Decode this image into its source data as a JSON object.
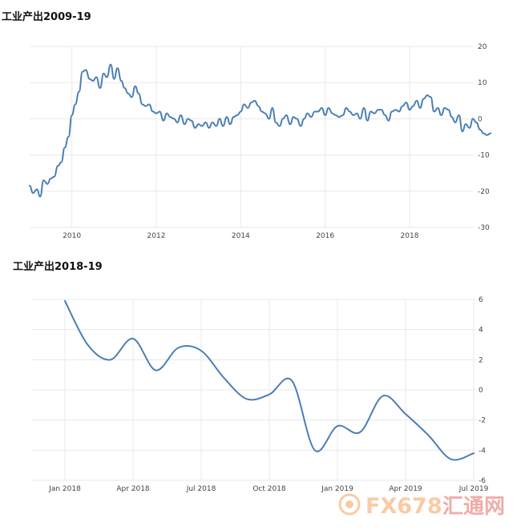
{
  "chart_data": [
    {
      "type": "line",
      "title": "工业产出2009-19",
      "x_ticks": [
        "2010",
        "2012",
        "2014",
        "2016",
        "2018"
      ],
      "y_ticks": [
        "20",
        "10",
        "0",
        "-10",
        "-20",
        "-30"
      ],
      "ylim": [
        -30,
        20
      ],
      "xlim": [
        2009.0,
        2019.5
      ],
      "grid": true,
      "series": [
        {
          "values": [
            [
              2009.0,
              -18.5
            ],
            [
              2009.08,
              -20.5
            ],
            [
              2009.17,
              -19.5
            ],
            [
              2009.25,
              -21.5
            ],
            [
              2009.33,
              -17
            ],
            [
              2009.42,
              -18
            ],
            [
              2009.5,
              -16.5
            ],
            [
              2009.58,
              -16
            ],
            [
              2009.67,
              -13
            ],
            [
              2009.75,
              -12
            ],
            [
              2009.83,
              -8
            ],
            [
              2009.92,
              -5
            ],
            [
              2010.0,
              1
            ],
            [
              2010.08,
              4
            ],
            [
              2010.17,
              7.5
            ],
            [
              2010.25,
              13
            ],
            [
              2010.33,
              13.5
            ],
            [
              2010.42,
              11
            ],
            [
              2010.5,
              10.5
            ],
            [
              2010.58,
              11.5
            ],
            [
              2010.67,
              8.5
            ],
            [
              2010.75,
              12.5
            ],
            [
              2010.83,
              11.5
            ],
            [
              2010.92,
              15
            ],
            [
              2011.0,
              11
            ],
            [
              2011.08,
              14
            ],
            [
              2011.17,
              10.5
            ],
            [
              2011.25,
              8.5
            ],
            [
              2011.33,
              7
            ],
            [
              2011.42,
              6
            ],
            [
              2011.5,
              9
            ],
            [
              2011.58,
              7
            ],
            [
              2011.67,
              4
            ],
            [
              2011.75,
              3.5
            ],
            [
              2011.83,
              4
            ],
            [
              2011.92,
              2
            ],
            [
              2012.0,
              1.5
            ],
            [
              2012.08,
              2
            ],
            [
              2012.17,
              -0.5
            ],
            [
              2012.25,
              1.5
            ],
            [
              2012.33,
              0.5
            ],
            [
              2012.42,
              0
            ],
            [
              2012.5,
              -1
            ],
            [
              2012.58,
              1
            ],
            [
              2012.67,
              -1.5
            ],
            [
              2012.75,
              0
            ],
            [
              2012.83,
              -0.5
            ],
            [
              2012.92,
              -2.5
            ],
            [
              2013.0,
              -1.5
            ],
            [
              2013.08,
              -2
            ],
            [
              2013.17,
              -1
            ],
            [
              2013.25,
              -2.5
            ],
            [
              2013.33,
              -1
            ],
            [
              2013.42,
              -2
            ],
            [
              2013.5,
              0
            ],
            [
              2013.58,
              -2
            ],
            [
              2013.67,
              0.5
            ],
            [
              2013.75,
              -1.5
            ],
            [
              2013.83,
              0.5
            ],
            [
              2013.92,
              1
            ],
            [
              2014.0,
              2
            ],
            [
              2014.08,
              4
            ],
            [
              2014.17,
              3
            ],
            [
              2014.25,
              4.5
            ],
            [
              2014.33,
              5
            ],
            [
              2014.42,
              3.5
            ],
            [
              2014.5,
              2
            ],
            [
              2014.58,
              1.5
            ],
            [
              2014.67,
              0
            ],
            [
              2014.75,
              3
            ],
            [
              2014.83,
              -1
            ],
            [
              2014.92,
              -2
            ],
            [
              2015.0,
              0
            ],
            [
              2015.08,
              1
            ],
            [
              2015.17,
              -1.5
            ],
            [
              2015.25,
              0.5
            ],
            [
              2015.33,
              0
            ],
            [
              2015.42,
              -2
            ],
            [
              2015.5,
              0
            ],
            [
              2015.58,
              1.5
            ],
            [
              2015.67,
              0.5
            ],
            [
              2015.75,
              2
            ],
            [
              2015.83,
              2
            ],
            [
              2015.92,
              3
            ],
            [
              2016.0,
              1
            ],
            [
              2016.08,
              3
            ],
            [
              2016.17,
              1.5
            ],
            [
              2016.25,
              1
            ],
            [
              2016.33,
              0.5
            ],
            [
              2016.42,
              1
            ],
            [
              2016.5,
              3
            ],
            [
              2016.58,
              2
            ],
            [
              2016.67,
              1
            ],
            [
              2016.75,
              1.5
            ],
            [
              2016.83,
              0
            ],
            [
              2016.92,
              3
            ],
            [
              2017.0,
              -0.5
            ],
            [
              2017.08,
              2
            ],
            [
              2017.17,
              1.5
            ],
            [
              2017.25,
              2.5
            ],
            [
              2017.33,
              2.5
            ],
            [
              2017.42,
              1
            ],
            [
              2017.5,
              -0.5
            ],
            [
              2017.58,
              2
            ],
            [
              2017.67,
              2.5
            ],
            [
              2017.75,
              2
            ],
            [
              2017.83,
              3.5
            ],
            [
              2017.92,
              4.5
            ],
            [
              2018.0,
              2.5
            ],
            [
              2018.08,
              3.5
            ],
            [
              2018.17,
              5
            ],
            [
              2018.25,
              3
            ],
            [
              2018.33,
              5.5
            ],
            [
              2018.42,
              6.5
            ],
            [
              2018.5,
              6
            ],
            [
              2018.58,
              2
            ],
            [
              2018.67,
              3
            ],
            [
              2018.75,
              1
            ],
            [
              2018.83,
              3
            ],
            [
              2018.92,
              2.5
            ],
            [
              2019.0,
              0.5
            ],
            [
              2019.08,
              -1
            ],
            [
              2019.17,
              1
            ],
            [
              2019.25,
              -3.5
            ],
            [
              2019.33,
              -1.5
            ],
            [
              2019.42,
              -2.5
            ],
            [
              2019.5,
              0
            ],
            [
              2019.58,
              -1
            ],
            [
              2019.67,
              -3
            ],
            [
              2019.75,
              -4
            ],
            [
              2019.83,
              -4.5
            ],
            [
              2019.92,
              -4
            ]
          ]
        }
      ]
    },
    {
      "type": "line",
      "title": "工业产出2018-19",
      "x_ticks": [
        "Jan 2018",
        "Apr 2018",
        "Jul 2018",
        "Oct 2018",
        "Jan 2019",
        "Apr 2019",
        "Jul 2019"
      ],
      "y_ticks": [
        "6",
        "4",
        "2",
        "0",
        "-2",
        "-4",
        "-6"
      ],
      "ylim": [
        -6,
        6
      ],
      "grid": true,
      "series": [
        {
          "values": [
            [
              "2018-01",
              5.9
            ],
            [
              "2018-02",
              3.0
            ],
            [
              "2018-03",
              2.0
            ],
            [
              "2018-04",
              3.4
            ],
            [
              "2018-05",
              1.3
            ],
            [
              "2018-06",
              2.8
            ],
            [
              "2018-07",
              2.6
            ],
            [
              "2018-08",
              0.8
            ],
            [
              "2018-09",
              -0.6
            ],
            [
              "2018-10",
              -0.3
            ],
            [
              "2018-11",
              0.6
            ],
            [
              "2018-12",
              -4.0
            ],
            [
              "2019-01",
              -2.4
            ],
            [
              "2019-02",
              -2.8
            ],
            [
              "2019-03",
              -0.4
            ],
            [
              "2019-04",
              -1.6
            ],
            [
              "2019-05",
              -3.0
            ],
            [
              "2019-06",
              -4.6
            ],
            [
              "2019-07",
              -4.2
            ]
          ]
        }
      ]
    }
  ],
  "watermark": {
    "text_fx": "FX678",
    "text_cn": "汇通网",
    "color_orange": "#f5a25a",
    "color_red": "#e26b62"
  }
}
